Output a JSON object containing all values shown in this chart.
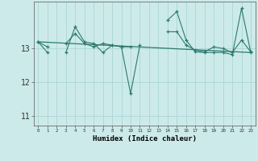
{
  "x": [
    0,
    1,
    2,
    3,
    4,
    5,
    6,
    7,
    8,
    9,
    10,
    11,
    12,
    13,
    14,
    15,
    16,
    17,
    18,
    19,
    20,
    21,
    22,
    23
  ],
  "series1": [
    13.2,
    13.05,
    null,
    13.15,
    13.45,
    13.15,
    13.05,
    13.15,
    13.1,
    13.05,
    13.05,
    null,
    null,
    null,
    13.5,
    13.5,
    13.1,
    12.95,
    12.9,
    13.05,
    13.0,
    12.88,
    13.25,
    12.9
  ],
  "series2": [
    13.2,
    12.88,
    null,
    12.88,
    13.65,
    13.2,
    13.15,
    12.88,
    13.1,
    13.05,
    11.65,
    13.1,
    null,
    null,
    13.85,
    14.1,
    13.25,
    12.9,
    12.88,
    12.88,
    12.88,
    12.82,
    14.2,
    12.88
  ],
  "trend_x": [
    0,
    23
  ],
  "trend_y": [
    13.2,
    12.88
  ],
  "line_color": "#2d7a6e",
  "bg_color": "#cdeaea",
  "grid_color": "#b0d8d8",
  "ylabel_ticks": [
    11,
    12,
    13
  ],
  "ylim": [
    10.7,
    14.4
  ],
  "xlim": [
    -0.5,
    23.5
  ],
  "xlabel": "Humidex (Indice chaleur)"
}
